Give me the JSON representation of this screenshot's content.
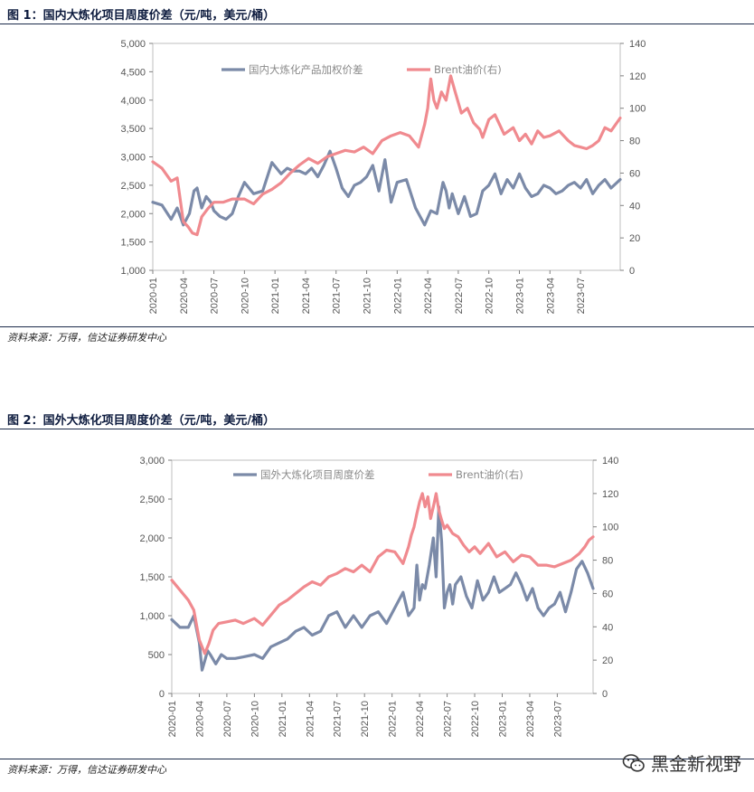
{
  "figure1": {
    "title": "图 1：国内大炼化项目周度价差（元/吨，美元/桶）",
    "source": "资料来源：万得，信达证券研发中心"
  },
  "figure2": {
    "title": "图 2：国外大炼化项目周度价差（元/吨，美元/桶）",
    "source": "资料来源：万得，信达证券研发中心"
  },
  "watermark": {
    "text": "黑金新视野",
    "icon": "wechat-icon"
  },
  "colors": {
    "spread": "#7b8aa8",
    "brent": "#f08a8f",
    "axis": "#7f7f7f"
  },
  "chart_data": [
    {
      "type": "line",
      "title": "图 1：国内大炼化项目周度价差（元/吨，美元/桶）",
      "x_ticks": [
        "2020-01",
        "2020-04",
        "2020-07",
        "2020-10",
        "2021-01",
        "2021-04",
        "2021-07",
        "2021-10",
        "2022-01",
        "2022-04",
        "2022-07",
        "2022-10",
        "2023-01",
        "2023-04",
        "2023-07"
      ],
      "x_range": [
        0,
        15.3
      ],
      "y_left": {
        "lim": [
          1000,
          5000
        ],
        "ticks": [
          1000,
          1500,
          2000,
          2500,
          3000,
          3500,
          4000,
          4500,
          5000
        ],
        "tick_labels": [
          "1,000",
          "1,500",
          "2,000",
          "2,500",
          "3,000",
          "3,500",
          "4,000",
          "4,500",
          "5,000"
        ]
      },
      "y_right": {
        "lim": [
          0,
          140
        ],
        "ticks": [
          0,
          20,
          40,
          60,
          80,
          100,
          120,
          140
        ],
        "tick_labels": [
          "0",
          "20",
          "40",
          "60",
          "80",
          "100",
          "120",
          "140"
        ]
      },
      "legend_position": "top",
      "series": [
        {
          "name": "国内大炼化产品加权价差",
          "axis": "left",
          "color": "#7b8aa8",
          "x": [
            0,
            0.3,
            0.6,
            0.8,
            1.0,
            1.2,
            1.35,
            1.45,
            1.6,
            1.75,
            1.9,
            2.0,
            2.2,
            2.4,
            2.6,
            2.8,
            3.0,
            3.3,
            3.6,
            3.9,
            4.2,
            4.4,
            4.6,
            4.8,
            5.0,
            5.2,
            5.4,
            5.6,
            5.8,
            6.0,
            6.2,
            6.4,
            6.6,
            6.8,
            7.0,
            7.2,
            7.4,
            7.6,
            7.8,
            8.0,
            8.3,
            8.6,
            8.9,
            9.1,
            9.3,
            9.5,
            9.6,
            9.7,
            9.8,
            10.0,
            10.2,
            10.4,
            10.6,
            10.8,
            11.0,
            11.2,
            11.4,
            11.6,
            11.8,
            12.0,
            12.2,
            12.4,
            12.6,
            12.8,
            13.0,
            13.2,
            13.4,
            13.6,
            13.8,
            14.0,
            14.2,
            14.4,
            14.6,
            14.8,
            15.0,
            15.3
          ],
          "y": [
            2200,
            2150,
            1900,
            2100,
            1800,
            2000,
            2400,
            2450,
            2100,
            2300,
            2200,
            2050,
            1950,
            1900,
            2000,
            2300,
            2550,
            2350,
            2400,
            2900,
            2700,
            2800,
            2750,
            2750,
            2700,
            2800,
            2650,
            2850,
            3100,
            2800,
            2450,
            2300,
            2500,
            2550,
            2650,
            2850,
            2400,
            2950,
            2200,
            2550,
            2600,
            2100,
            1800,
            2050,
            2000,
            2550,
            2400,
            2100,
            2350,
            2000,
            2300,
            1950,
            2000,
            2400,
            2500,
            2700,
            2350,
            2600,
            2450,
            2700,
            2450,
            2300,
            2350,
            2500,
            2450,
            2350,
            2400,
            2500,
            2550,
            2450,
            2600,
            2350,
            2500,
            2600,
            2450,
            2600
          ]
        },
        {
          "name": "Brent油价(右)",
          "axis": "right",
          "color": "#f08a8f",
          "x": [
            0,
            0.3,
            0.6,
            0.8,
            1.0,
            1.15,
            1.3,
            1.45,
            1.6,
            1.8,
            2.0,
            2.3,
            2.6,
            3.0,
            3.3,
            3.6,
            3.9,
            4.2,
            4.5,
            4.8,
            5.1,
            5.4,
            5.7,
            6.0,
            6.3,
            6.6,
            6.9,
            7.2,
            7.5,
            7.8,
            8.1,
            8.4,
            8.7,
            8.9,
            9.0,
            9.05,
            9.1,
            9.2,
            9.3,
            9.45,
            9.6,
            9.75,
            9.9,
            10.1,
            10.3,
            10.5,
            10.7,
            10.8,
            11.0,
            11.2,
            11.5,
            11.8,
            12.0,
            12.2,
            12.4,
            12.6,
            12.8,
            13.0,
            13.3,
            13.6,
            13.8,
            14.0,
            14.2,
            14.4,
            14.6,
            14.8,
            15.0,
            15.3
          ],
          "y": [
            67,
            63,
            55,
            57,
            30,
            27,
            23,
            22,
            33,
            38,
            42,
            42,
            44,
            44,
            41,
            47,
            50,
            54,
            60,
            65,
            69,
            66,
            70,
            72,
            74,
            73,
            76,
            72,
            80,
            83,
            85,
            83,
            76,
            90,
            100,
            110,
            118,
            105,
            100,
            110,
            105,
            120,
            110,
            97,
            100,
            91,
            87,
            82,
            93,
            96,
            84,
            88,
            80,
            84,
            78,
            86,
            82,
            83,
            86,
            80,
            77,
            76,
            75,
            77,
            80,
            88,
            86,
            94
          ]
        }
      ]
    },
    {
      "type": "line",
      "title": "图 2：国外大炼化项目周度价差（元/吨，美元/桶）",
      "x_ticks": [
        "2020-01",
        "2020-04",
        "2020-07",
        "2020-10",
        "2021-01",
        "2021-04",
        "2021-07",
        "2021-10",
        "2022-01",
        "2022-04",
        "2022-07",
        "2022-10",
        "2023-01",
        "2023-04",
        "2023-07"
      ],
      "x_range": [
        0,
        15.3
      ],
      "y_left": {
        "lim": [
          0,
          3000
        ],
        "ticks": [
          0,
          500,
          1000,
          1500,
          2000,
          2500,
          3000
        ],
        "tick_labels": [
          "0",
          "500",
          "1,000",
          "1,500",
          "2,000",
          "2,500",
          "3,000"
        ]
      },
      "y_right": {
        "lim": [
          0,
          140
        ],
        "ticks": [
          0,
          20,
          40,
          60,
          80,
          100,
          120,
          140
        ],
        "tick_labels": [
          "0",
          "20",
          "40",
          "60",
          "80",
          "100",
          "120",
          "140"
        ]
      },
      "legend_position": "top",
      "series": [
        {
          "name": "国外大炼化项目周度价差",
          "axis": "left",
          "color": "#7b8aa8",
          "x": [
            0,
            0.3,
            0.6,
            0.8,
            1.0,
            1.1,
            1.2,
            1.3,
            1.4,
            1.6,
            1.8,
            2.0,
            2.3,
            2.6,
            3.0,
            3.3,
            3.6,
            3.9,
            4.2,
            4.5,
            4.8,
            5.1,
            5.4,
            5.7,
            6.0,
            6.3,
            6.6,
            6.9,
            7.2,
            7.5,
            7.8,
            8.1,
            8.4,
            8.6,
            8.8,
            8.9,
            9.0,
            9.1,
            9.2,
            9.35,
            9.5,
            9.6,
            9.7,
            9.8,
            9.9,
            10.0,
            10.1,
            10.2,
            10.3,
            10.5,
            10.7,
            10.9,
            11.1,
            11.3,
            11.5,
            11.7,
            11.9,
            12.1,
            12.3,
            12.5,
            12.7,
            12.9,
            13.1,
            13.3,
            13.5,
            13.7,
            13.9,
            14.1,
            14.3,
            14.5,
            14.7,
            14.9,
            15.1,
            15.3
          ],
          "y": [
            950,
            850,
            850,
            1000,
            650,
            300,
            420,
            550,
            500,
            380,
            500,
            450,
            450,
            470,
            500,
            450,
            600,
            650,
            700,
            800,
            850,
            750,
            800,
            1000,
            1050,
            850,
            1000,
            850,
            1000,
            1050,
            900,
            1100,
            1300,
            1000,
            1100,
            1650,
            1200,
            1400,
            1350,
            1650,
            2000,
            1500,
            2400,
            1950,
            1100,
            1300,
            1400,
            1150,
            1400,
            1500,
            1250,
            1100,
            1450,
            1200,
            1300,
            1500,
            1300,
            1350,
            1400,
            1550,
            1400,
            1200,
            1350,
            1100,
            1000,
            1100,
            1150,
            1300,
            1050,
            1300,
            1600,
            1700,
            1550,
            1350
          ]
        },
        {
          "name": "Brent油价(右)",
          "axis": "right",
          "color": "#f08a8f",
          "x": [
            0,
            0.3,
            0.6,
            0.8,
            1.0,
            1.1,
            1.2,
            1.35,
            1.5,
            1.7,
            2.0,
            2.3,
            2.6,
            3.0,
            3.3,
            3.6,
            3.9,
            4.2,
            4.5,
            4.8,
            5.1,
            5.4,
            5.7,
            6.0,
            6.3,
            6.6,
            6.9,
            7.2,
            7.5,
            7.8,
            8.1,
            8.4,
            8.6,
            8.7,
            8.8,
            8.9,
            9.0,
            9.1,
            9.2,
            9.3,
            9.4,
            9.5,
            9.6,
            9.7,
            9.8,
            9.9,
            10.0,
            10.2,
            10.4,
            10.6,
            10.8,
            11.0,
            11.2,
            11.5,
            11.8,
            12.1,
            12.4,
            12.7,
            13.0,
            13.3,
            13.6,
            13.9,
            14.2,
            14.5,
            14.8,
            15.0,
            15.15,
            15.3
          ],
          "y": [
            68,
            62,
            56,
            50,
            32,
            28,
            24,
            30,
            38,
            42,
            43,
            44,
            42,
            45,
            41,
            47,
            53,
            56,
            60,
            64,
            67,
            65,
            70,
            72,
            75,
            73,
            77,
            73,
            82,
            86,
            85,
            78,
            88,
            95,
            100,
            108,
            115,
            120,
            112,
            118,
            105,
            112,
            120,
            110,
            104,
            99,
            101,
            96,
            94,
            89,
            85,
            88,
            84,
            90,
            82,
            85,
            79,
            83,
            82,
            77,
            77,
            76,
            78,
            80,
            84,
            88,
            92,
            94
          ]
        }
      ]
    }
  ]
}
